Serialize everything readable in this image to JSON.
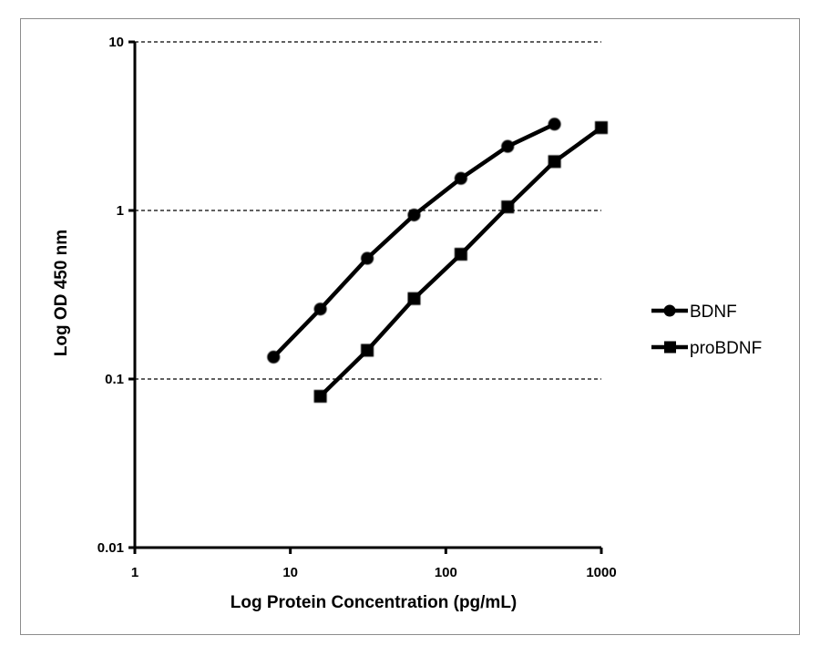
{
  "chart_data": {
    "type": "line",
    "xlabel": "Log Protein Concentration (pg/mL)",
    "ylabel": "Log OD 450 nm",
    "x_scale": "log",
    "y_scale": "log",
    "xlim": [
      1,
      1000
    ],
    "ylim": [
      0.01,
      10
    ],
    "x_ticks": [
      "1",
      "10",
      "100",
      "1000"
    ],
    "y_ticks": [
      "0.01",
      "0.1",
      "1",
      "10"
    ],
    "grid": "horizontal dashed",
    "legend_position": "right",
    "series": [
      {
        "name": "BDNF",
        "marker": "circle",
        "color": "#000000",
        "points": [
          {
            "x": 7.8,
            "y": 0.135
          },
          {
            "x": 15.6,
            "y": 0.26
          },
          {
            "x": 31.25,
            "y": 0.52
          },
          {
            "x": 62.5,
            "y": 0.94
          },
          {
            "x": 125,
            "y": 1.55
          },
          {
            "x": 250,
            "y": 2.4
          },
          {
            "x": 500,
            "y": 3.25
          }
        ]
      },
      {
        "name": "proBDNF",
        "marker": "square",
        "color": "#000000",
        "points": [
          {
            "x": 15.6,
            "y": 0.079
          },
          {
            "x": 31.25,
            "y": 0.148
          },
          {
            "x": 62.5,
            "y": 0.3
          },
          {
            "x": 125,
            "y": 0.55
          },
          {
            "x": 250,
            "y": 1.05
          },
          {
            "x": 500,
            "y": 1.95
          },
          {
            "x": 1000,
            "y": 3.1
          }
        ]
      }
    ]
  }
}
